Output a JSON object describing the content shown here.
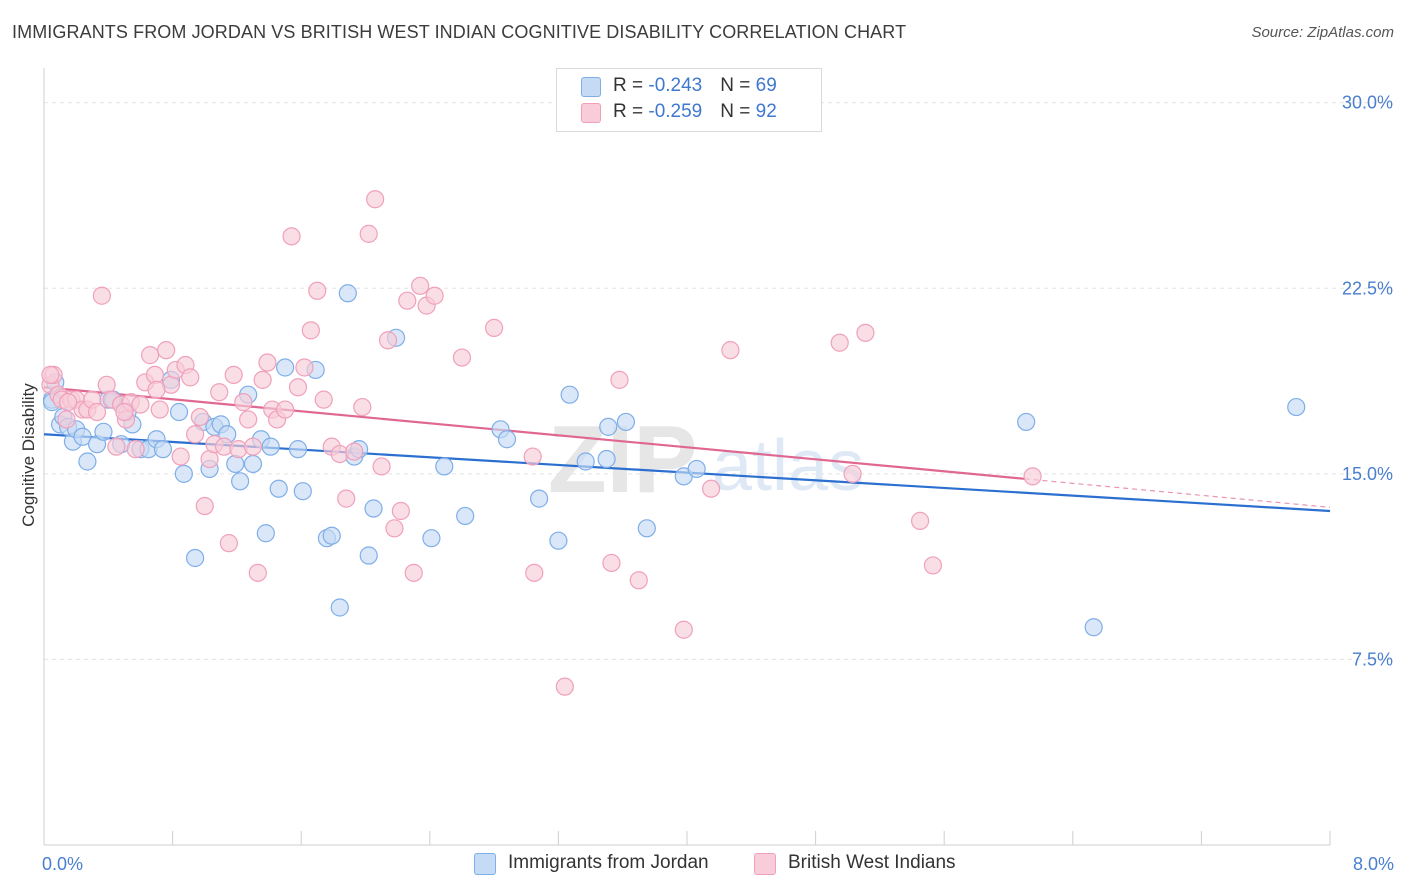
{
  "title": "IMMIGRANTS FROM JORDAN VS BRITISH WEST INDIAN COGNITIVE DISABILITY CORRELATION CHART",
  "source": "Source: ZipAtlas.com",
  "watermark": {
    "zip": "ZIP",
    "atlas": "atlas"
  },
  "legend_top": [
    {
      "r_label": "R = ",
      "r_value": "-0.243",
      "n_label": "N = ",
      "n_value": "69"
    },
    {
      "r_label": "R = ",
      "r_value": "-0.259",
      "n_label": "N = ",
      "n_value": "92"
    }
  ],
  "legend_bottom": [
    {
      "label": "Immigrants from Jordan"
    },
    {
      "label": "British West Indians"
    }
  ],
  "chart_data": {
    "type": "scatter",
    "title": "IMMIGRANTS FROM JORDAN VS BRITISH WEST INDIAN COGNITIVE DISABILITY CORRELATION CHART",
    "xlabel": "",
    "ylabel": "Cognitive Disability",
    "xlim": [
      0,
      8
    ],
    "ylim": [
      0,
      31
    ],
    "x_tick_labels": [
      "0.0%",
      "8.0%"
    ],
    "y_ticks": [
      7.5,
      15.0,
      22.5,
      30.0
    ],
    "y_tick_labels": [
      "7.5%",
      "15.0%",
      "22.5%",
      "30.0%"
    ],
    "grid": true,
    "legend_position": "top-center",
    "series": [
      {
        "name": "Immigrants from Jordan",
        "color": "#7faee8",
        "fill": "#c5daf5",
        "line_color": "#2b6fd0",
        "trend": {
          "x": [
            0,
            8
          ],
          "y": [
            16.6,
            13.5
          ],
          "x_dashed_to": 8
        },
        "points": [
          [
            0.05,
            18.0
          ],
          [
            0.07,
            18.7
          ],
          [
            0.1,
            17.0
          ],
          [
            0.12,
            17.3
          ],
          [
            0.15,
            16.9
          ],
          [
            0.18,
            16.3
          ],
          [
            0.2,
            16.8
          ],
          [
            0.24,
            16.5
          ],
          [
            0.27,
            15.5
          ],
          [
            0.33,
            16.2
          ],
          [
            0.37,
            16.7
          ],
          [
            0.4,
            18.0
          ],
          [
            0.43,
            18.0
          ],
          [
            0.48,
            16.2
          ],
          [
            0.52,
            17.5
          ],
          [
            0.55,
            17.0
          ],
          [
            0.6,
            16.0
          ],
          [
            0.65,
            16.0
          ],
          [
            0.7,
            16.4
          ],
          [
            0.74,
            16.0
          ],
          [
            0.79,
            18.8
          ],
          [
            0.84,
            17.5
          ],
          [
            0.87,
            15.0
          ],
          [
            0.94,
            11.6
          ],
          [
            0.99,
            17.1
          ],
          [
            1.03,
            15.2
          ],
          [
            1.06,
            16.9
          ],
          [
            1.1,
            17.0
          ],
          [
            1.14,
            16.6
          ],
          [
            1.19,
            15.4
          ],
          [
            1.22,
            14.7
          ],
          [
            1.27,
            18.2
          ],
          [
            1.3,
            15.4
          ],
          [
            1.35,
            16.4
          ],
          [
            1.38,
            12.6
          ],
          [
            1.41,
            16.1
          ],
          [
            1.46,
            14.4
          ],
          [
            1.5,
            19.3
          ],
          [
            1.58,
            16.0
          ],
          [
            1.61,
            14.3
          ],
          [
            1.69,
            19.2
          ],
          [
            1.76,
            12.4
          ],
          [
            1.79,
            12.5
          ],
          [
            1.84,
            9.6
          ],
          [
            1.89,
            22.3
          ],
          [
            1.93,
            15.7
          ],
          [
            1.96,
            16.0
          ],
          [
            2.02,
            11.7
          ],
          [
            2.05,
            13.6
          ],
          [
            2.19,
            20.5
          ],
          [
            2.41,
            12.4
          ],
          [
            2.49,
            15.3
          ],
          [
            2.62,
            13.3
          ],
          [
            2.84,
            16.8
          ],
          [
            2.88,
            16.4
          ],
          [
            3.08,
            14.0
          ],
          [
            3.2,
            12.3
          ],
          [
            3.27,
            18.2
          ],
          [
            3.37,
            15.5
          ],
          [
            3.5,
            15.6
          ],
          [
            3.51,
            16.9
          ],
          [
            3.62,
            17.1
          ],
          [
            3.75,
            12.8
          ],
          [
            3.98,
            14.9
          ],
          [
            4.06,
            15.2
          ],
          [
            6.11,
            17.1
          ],
          [
            6.53,
            8.8
          ],
          [
            7.79,
            17.7
          ],
          [
            0.05,
            17.9
          ]
        ]
      },
      {
        "name": "British West Indians",
        "color": "#f0a0bb",
        "fill": "#f8cdd9",
        "line_color": "#e06890",
        "trend": {
          "x": [
            0,
            6.1
          ],
          "y": [
            18.5,
            14.8
          ],
          "x_dashed_to": 8
        },
        "points": [
          [
            0.04,
            18.6
          ],
          [
            0.06,
            19.0
          ],
          [
            0.09,
            18.2
          ],
          [
            0.11,
            18.0
          ],
          [
            0.14,
            17.2
          ],
          [
            0.17,
            18.0
          ],
          [
            0.2,
            18.0
          ],
          [
            0.24,
            17.6
          ],
          [
            0.27,
            17.6
          ],
          [
            0.3,
            18.0
          ],
          [
            0.33,
            17.5
          ],
          [
            0.36,
            22.2
          ],
          [
            0.39,
            18.6
          ],
          [
            0.42,
            18.0
          ],
          [
            0.45,
            16.1
          ],
          [
            0.48,
            17.8
          ],
          [
            0.51,
            17.2
          ],
          [
            0.54,
            17.9
          ],
          [
            0.57,
            16.0
          ],
          [
            0.6,
            17.8
          ],
          [
            0.63,
            18.7
          ],
          [
            0.66,
            19.8
          ],
          [
            0.69,
            19.0
          ],
          [
            0.72,
            17.6
          ],
          [
            0.76,
            20.0
          ],
          [
            0.79,
            18.6
          ],
          [
            0.82,
            19.2
          ],
          [
            0.85,
            15.7
          ],
          [
            0.88,
            19.4
          ],
          [
            0.91,
            18.9
          ],
          [
            0.94,
            16.6
          ],
          [
            0.97,
            17.3
          ],
          [
            1.0,
            13.7
          ],
          [
            1.03,
            15.6
          ],
          [
            1.06,
            16.2
          ],
          [
            1.09,
            18.3
          ],
          [
            1.12,
            16.1
          ],
          [
            1.15,
            12.2
          ],
          [
            1.18,
            19.0
          ],
          [
            1.21,
            16.0
          ],
          [
            1.24,
            17.9
          ],
          [
            1.27,
            17.2
          ],
          [
            1.3,
            16.1
          ],
          [
            1.33,
            11.0
          ],
          [
            1.36,
            18.8
          ],
          [
            1.39,
            19.5
          ],
          [
            1.42,
            17.6
          ],
          [
            1.45,
            17.2
          ],
          [
            1.5,
            17.6
          ],
          [
            1.54,
            24.6
          ],
          [
            1.58,
            18.5
          ],
          [
            1.62,
            19.3
          ],
          [
            1.66,
            20.8
          ],
          [
            1.7,
            22.4
          ],
          [
            1.74,
            18.0
          ],
          [
            1.79,
            16.1
          ],
          [
            1.84,
            15.8
          ],
          [
            1.88,
            14.0
          ],
          [
            1.93,
            15.9
          ],
          [
            1.98,
            17.7
          ],
          [
            2.02,
            24.7
          ],
          [
            2.06,
            26.1
          ],
          [
            2.1,
            15.3
          ],
          [
            2.14,
            20.4
          ],
          [
            2.18,
            12.8
          ],
          [
            2.22,
            13.5
          ],
          [
            2.26,
            22.0
          ],
          [
            2.3,
            11.0
          ],
          [
            2.34,
            22.6
          ],
          [
            2.38,
            21.8
          ],
          [
            2.43,
            22.2
          ],
          [
            2.6,
            19.7
          ],
          [
            2.8,
            20.9
          ],
          [
            3.04,
            15.7
          ],
          [
            3.05,
            11.0
          ],
          [
            3.24,
            6.4
          ],
          [
            3.53,
            11.4
          ],
          [
            3.58,
            18.8
          ],
          [
            3.7,
            10.7
          ],
          [
            3.98,
            8.7
          ],
          [
            4.15,
            14.4
          ],
          [
            4.27,
            20.0
          ],
          [
            4.95,
            20.3
          ],
          [
            5.03,
            15.0
          ],
          [
            5.11,
            20.7
          ],
          [
            5.45,
            13.1
          ],
          [
            5.53,
            11.3
          ],
          [
            6.15,
            14.9
          ],
          [
            0.04,
            19.0
          ],
          [
            0.15,
            17.9
          ],
          [
            0.5,
            17.5
          ],
          [
            0.7,
            18.4
          ]
        ]
      }
    ]
  }
}
